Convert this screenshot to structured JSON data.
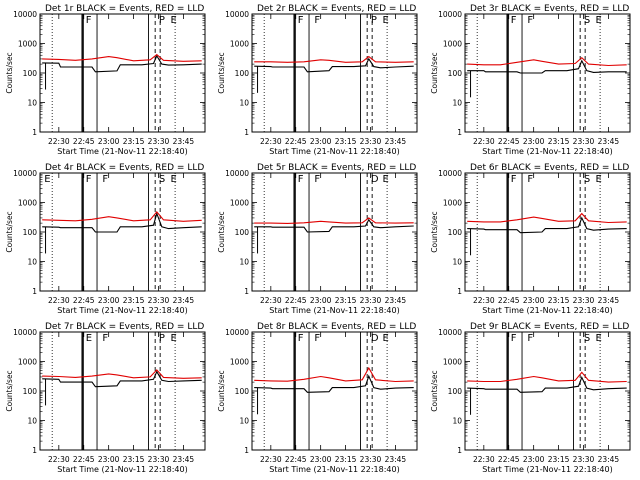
{
  "figure": {
    "xlabel": "Start Time (21-Nov-11 22:18:40)",
    "ylabel": "Counts/sec"
  },
  "chart_data": [
    {
      "type": "line",
      "title": "Det 1r BLACK = Events, RED = LLD",
      "xlabel": "Start Time (21-Nov-11 22:18:40)",
      "ylabel": "Counts/sec",
      "yscale": "log",
      "ylim": [
        1,
        10000
      ],
      "xlim": [
        "22:18:40",
        "23:58"
      ],
      "xticks": [
        "22:30",
        "22:45",
        "23:00",
        "23:15",
        "23:30",
        "23:45"
      ],
      "yticks": [
        "1",
        "10",
        "100",
        "1000",
        "10000"
      ],
      "annotations": [
        "F",
        "P",
        "E"
      ],
      "series": [
        {
          "name": "Events",
          "color": "#000000",
          "x": [
            "22:20",
            "22:30",
            "22:31",
            "22:40",
            "22:50",
            "22:52",
            "23:05",
            "23:07",
            "23:20",
            "23:27",
            "23:29",
            "23:32",
            "23:36",
            "23:45",
            "23:56"
          ],
          "values": [
            220,
            215,
            160,
            160,
            160,
            110,
            118,
            190,
            190,
            210,
            380,
            200,
            185,
            190,
            200
          ]
        },
        {
          "name": "LLD",
          "color": "#e00000",
          "x": [
            "22:20",
            "22:30",
            "22:40",
            "22:50",
            "23:00",
            "23:05",
            "23:15",
            "23:25",
            "23:29",
            "23:33",
            "23:45",
            "23:56"
          ],
          "values": [
            300,
            290,
            270,
            300,
            360,
            330,
            260,
            280,
            420,
            270,
            250,
            260
          ]
        }
      ]
    },
    {
      "type": "line",
      "title": "Det 2r BLACK = Events, RED = LLD",
      "xlabel": "Start Time (21-Nov-11 22:18:40)",
      "ylabel": "Counts/sec",
      "yscale": "log",
      "ylim": [
        1,
        10000
      ],
      "xlim": [
        "22:18:40",
        "23:58"
      ],
      "xticks": [
        "22:30",
        "22:45",
        "23:00",
        "23:15",
        "23:30",
        "23:45"
      ],
      "yticks": [
        "1",
        "10",
        "100",
        "1000",
        "10000"
      ],
      "annotations": [
        "F",
        "F",
        "P",
        "E"
      ],
      "series": [
        {
          "name": "Events",
          "color": "#000000",
          "x": [
            "22:20",
            "22:30",
            "22:31",
            "22:40",
            "22:50",
            "22:52",
            "23:05",
            "23:07",
            "23:20",
            "23:27",
            "23:29",
            "23:32",
            "23:36",
            "23:45",
            "23:56"
          ],
          "values": [
            170,
            165,
            160,
            160,
            160,
            110,
            120,
            165,
            165,
            175,
            300,
            165,
            150,
            160,
            170
          ]
        },
        {
          "name": "LLD",
          "color": "#e00000",
          "x": [
            "22:20",
            "22:30",
            "22:40",
            "22:50",
            "23:00",
            "23:05",
            "23:15",
            "23:25",
            "23:29",
            "23:33",
            "23:45",
            "23:56"
          ],
          "values": [
            240,
            240,
            230,
            240,
            280,
            270,
            230,
            240,
            360,
            240,
            230,
            240
          ]
        }
      ]
    },
    {
      "type": "line",
      "title": "Det 3r BLACK = Events, RED = LLD",
      "xlabel": "Start Time (21-Nov-11 22:18:40)",
      "ylabel": "Counts/sec",
      "yscale": "log",
      "ylim": [
        1,
        10000
      ],
      "xlim": [
        "22:18:40",
        "23:58"
      ],
      "xticks": [
        "22:30",
        "22:45",
        "23:00",
        "23:15",
        "23:30",
        "23:45"
      ],
      "yticks": [
        "1",
        "10",
        "100",
        "1000",
        "10000"
      ],
      "annotations": [
        "F",
        "F",
        "S",
        "E"
      ],
      "series": [
        {
          "name": "Events",
          "color": "#000000",
          "x": [
            "22:20",
            "22:30",
            "22:31",
            "22:40",
            "22:50",
            "22:52",
            "23:05",
            "23:07",
            "23:20",
            "23:27",
            "23:29",
            "23:32",
            "23:36",
            "23:45",
            "23:56"
          ],
          "values": [
            120,
            120,
            110,
            110,
            110,
            100,
            100,
            120,
            120,
            140,
            260,
            120,
            105,
            110,
            110
          ]
        },
        {
          "name": "LLD",
          "color": "#e00000",
          "x": [
            "22:20",
            "22:30",
            "22:40",
            "22:50",
            "23:00",
            "23:05",
            "23:15",
            "23:25",
            "23:29",
            "23:33",
            "23:45",
            "23:56"
          ],
          "values": [
            200,
            190,
            190,
            230,
            280,
            250,
            200,
            210,
            330,
            200,
            180,
            190
          ]
        }
      ]
    },
    {
      "type": "line",
      "title": "Det 4r BLACK = Events, RED = LLD",
      "xlabel": "Start Time (21-Nov-11 22:18:40)",
      "ylabel": "Counts/sec",
      "yscale": "log",
      "ylim": [
        1,
        10000
      ],
      "xlim": [
        "22:18:40",
        "23:58"
      ],
      "xticks": [
        "22:30",
        "22:45",
        "23:00",
        "23:15",
        "23:30",
        "23:45"
      ],
      "yticks": [
        "1",
        "10",
        "100",
        "1000",
        "10000"
      ],
      "annotations": [
        "E",
        "F",
        "F",
        "S",
        "E"
      ],
      "series": [
        {
          "name": "Events",
          "color": "#000000",
          "x": [
            "22:20",
            "22:30",
            "22:31",
            "22:40",
            "22:50",
            "22:52",
            "23:05",
            "23:07",
            "23:20",
            "23:27",
            "23:29",
            "23:32",
            "23:36",
            "23:45",
            "23:56"
          ],
          "values": [
            150,
            145,
            140,
            140,
            140,
            100,
            100,
            150,
            150,
            170,
            420,
            150,
            130,
            140,
            150
          ]
        },
        {
          "name": "LLD",
          "color": "#e00000",
          "x": [
            "22:20",
            "22:30",
            "22:40",
            "22:50",
            "23:00",
            "23:05",
            "23:15",
            "23:25",
            "23:29",
            "23:33",
            "23:45",
            "23:56"
          ],
          "values": [
            260,
            250,
            240,
            270,
            330,
            300,
            240,
            260,
            480,
            260,
            230,
            250
          ]
        }
      ]
    },
    {
      "type": "line",
      "title": "Det 5r BLACK = Events, RED = LLD",
      "xlabel": "Start Time (21-Nov-11 22:18:40)",
      "ylabel": "Counts/sec",
      "yscale": "log",
      "ylim": [
        1,
        10000
      ],
      "xlim": [
        "22:18:40",
        "23:58"
      ],
      "xticks": [
        "22:30",
        "22:45",
        "23:00",
        "23:15",
        "23:30",
        "23:45"
      ],
      "yticks": [
        "1",
        "10",
        "100",
        "1000",
        "10000"
      ],
      "annotations": [
        "F",
        "F",
        "D",
        "E"
      ],
      "series": [
        {
          "name": "Events",
          "color": "#000000",
          "x": [
            "22:20",
            "22:30",
            "22:31",
            "22:40",
            "22:50",
            "22:52",
            "23:05",
            "23:07",
            "23:20",
            "23:27",
            "23:29",
            "23:32",
            "23:36",
            "23:45",
            "23:56"
          ],
          "values": [
            150,
            150,
            145,
            145,
            145,
            100,
            105,
            150,
            150,
            160,
            260,
            150,
            140,
            150,
            160
          ]
        },
        {
          "name": "LLD",
          "color": "#e00000",
          "x": [
            "22:20",
            "22:30",
            "22:40",
            "22:50",
            "23:00",
            "23:05",
            "23:15",
            "23:25",
            "23:29",
            "23:33",
            "23:45",
            "23:56"
          ],
          "values": [
            200,
            200,
            195,
            205,
            230,
            220,
            200,
            205,
            300,
            205,
            200,
            205
          ]
        }
      ]
    },
    {
      "type": "line",
      "title": "Det 6r BLACK = Events, RED = LLD",
      "xlabel": "Start Time (21-Nov-11 22:18:40)",
      "ylabel": "Counts/sec",
      "yscale": "log",
      "ylim": [
        1,
        10000
      ],
      "xlim": [
        "22:18:40",
        "23:58"
      ],
      "xticks": [
        "22:30",
        "22:45",
        "23:00",
        "23:15",
        "23:30",
        "23:45"
      ],
      "yticks": [
        "1",
        "10",
        "100",
        "1000",
        "10000"
      ],
      "annotations": [
        "F",
        "F",
        "S",
        "E"
      ],
      "series": [
        {
          "name": "Events",
          "color": "#000000",
          "x": [
            "22:20",
            "22:30",
            "22:31",
            "22:40",
            "22:50",
            "22:52",
            "23:05",
            "23:07",
            "23:20",
            "23:27",
            "23:29",
            "23:32",
            "23:36",
            "23:45",
            "23:56"
          ],
          "values": [
            130,
            125,
            120,
            120,
            120,
            95,
            100,
            130,
            130,
            150,
            300,
            130,
            115,
            125,
            130
          ]
        },
        {
          "name": "LLD",
          "color": "#e00000",
          "x": [
            "22:20",
            "22:30",
            "22:40",
            "22:50",
            "23:00",
            "23:05",
            "23:15",
            "23:25",
            "23:29",
            "23:33",
            "23:45",
            "23:56"
          ],
          "values": [
            230,
            220,
            220,
            260,
            320,
            290,
            230,
            240,
            420,
            240,
            210,
            220
          ]
        }
      ]
    },
    {
      "type": "line",
      "title": "Det 7r BLACK = Events, RED = LLD",
      "xlabel": "Start Time (21-Nov-11 22:18:40)",
      "ylabel": "Counts/sec",
      "yscale": "log",
      "ylim": [
        1,
        10000
      ],
      "xlim": [
        "22:18:40",
        "23:58"
      ],
      "xticks": [
        "22:30",
        "22:45",
        "23:00",
        "23:15",
        "23:30",
        "23:45"
      ],
      "yticks": [
        "1",
        "10",
        "100",
        "1000",
        "10000"
      ],
      "annotations": [
        "E",
        "F",
        "P",
        "E"
      ],
      "series": [
        {
          "name": "Events",
          "color": "#000000",
          "x": [
            "22:20",
            "22:30",
            "22:31",
            "22:40",
            "22:50",
            "22:52",
            "23:05",
            "23:07",
            "23:20",
            "23:27",
            "23:29",
            "23:32",
            "23:36",
            "23:45",
            "23:56"
          ],
          "values": [
            260,
            250,
            200,
            200,
            200,
            140,
            150,
            220,
            220,
            250,
            450,
            230,
            210,
            220,
            230
          ]
        },
        {
          "name": "LLD",
          "color": "#e00000",
          "x": [
            "22:20",
            "22:30",
            "22:40",
            "22:50",
            "23:00",
            "23:05",
            "23:15",
            "23:25",
            "23:29",
            "23:33",
            "23:45",
            "23:56"
          ],
          "values": [
            320,
            310,
            290,
            320,
            380,
            350,
            280,
            300,
            520,
            290,
            270,
            280
          ]
        }
      ]
    },
    {
      "type": "line",
      "title": "Det 8r BLACK = Events, RED = LLD",
      "xlabel": "Start Time (21-Nov-11 22:18:40)",
      "ylabel": "Counts/sec",
      "yscale": "log",
      "ylim": [
        1,
        10000
      ],
      "xlim": [
        "22:18:40",
        "23:58"
      ],
      "xticks": [
        "22:30",
        "22:45",
        "23:00",
        "23:15",
        "23:30",
        "23:45"
      ],
      "yticks": [
        "1",
        "10",
        "100",
        "1000",
        "10000"
      ],
      "annotations": [
        "F",
        "F",
        "D",
        "E"
      ],
      "series": [
        {
          "name": "Events",
          "color": "#000000",
          "x": [
            "22:20",
            "22:30",
            "22:31",
            "22:40",
            "22:50",
            "22:52",
            "23:05",
            "23:07",
            "23:20",
            "23:27",
            "23:29",
            "23:32",
            "23:36",
            "23:45",
            "23:56"
          ],
          "values": [
            130,
            125,
            120,
            120,
            120,
            90,
            95,
            130,
            130,
            150,
            320,
            130,
            115,
            125,
            130
          ]
        },
        {
          "name": "LLD",
          "color": "#e00000",
          "x": [
            "22:20",
            "22:30",
            "22:40",
            "22:50",
            "23:00",
            "23:05",
            "23:15",
            "23:25",
            "23:29",
            "23:33",
            "23:45",
            "23:56"
          ],
          "values": [
            230,
            220,
            215,
            250,
            310,
            280,
            220,
            240,
            600,
            240,
            210,
            220
          ]
        }
      ]
    },
    {
      "type": "line",
      "title": "Det 9r BLACK = Events, RED = LLD",
      "xlabel": "Start Time (21-Nov-11 22:18:40)",
      "ylabel": "Counts/sec",
      "yscale": "log",
      "ylim": [
        1,
        10000
      ],
      "xlim": [
        "22:18:40",
        "23:58"
      ],
      "xticks": [
        "22:30",
        "22:45",
        "23:00",
        "23:15",
        "23:30",
        "23:45"
      ],
      "yticks": [
        "1",
        "10",
        "100",
        "1000",
        "10000"
      ],
      "annotations": [
        "F",
        "F",
        "S",
        "E"
      ],
      "series": [
        {
          "name": "Events",
          "color": "#000000",
          "x": [
            "22:20",
            "22:30",
            "22:31",
            "22:40",
            "22:50",
            "22:52",
            "23:05",
            "23:07",
            "23:20",
            "23:27",
            "23:29",
            "23:32",
            "23:36",
            "23:45",
            "23:56"
          ],
          "values": [
            125,
            120,
            115,
            115,
            115,
            90,
            95,
            125,
            125,
            145,
            290,
            125,
            110,
            120,
            125
          ]
        },
        {
          "name": "LLD",
          "color": "#e00000",
          "x": [
            "22:20",
            "22:30",
            "22:40",
            "22:50",
            "23:00",
            "23:05",
            "23:15",
            "23:25",
            "23:29",
            "23:33",
            "23:45",
            "23:56"
          ],
          "values": [
            220,
            210,
            210,
            250,
            310,
            280,
            220,
            230,
            430,
            230,
            200,
            210
          ]
        }
      ]
    }
  ]
}
